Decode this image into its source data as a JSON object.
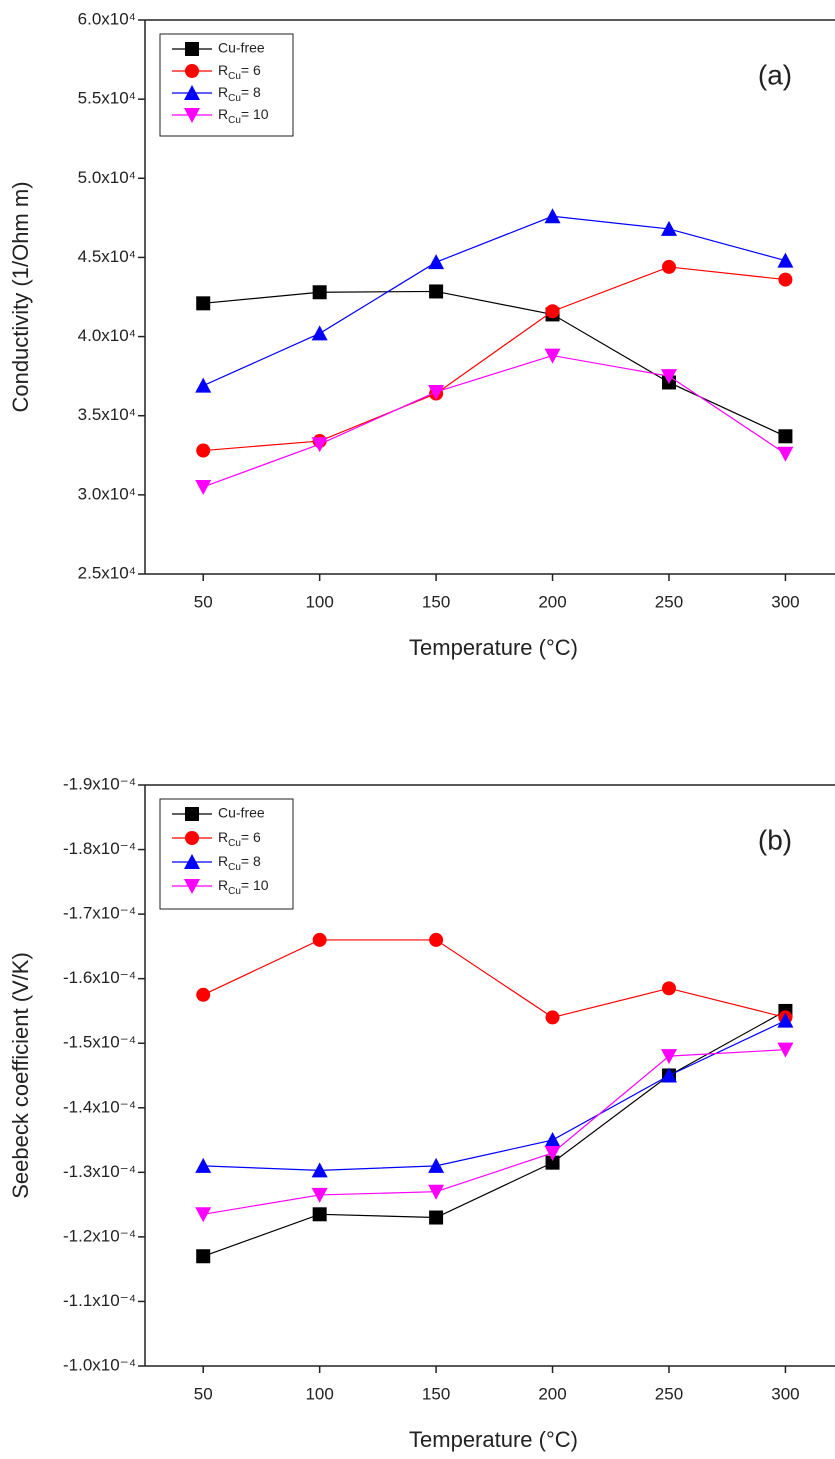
{
  "chart_data": [
    {
      "type": "line",
      "panel_label": "(a)",
      "ylabel": "Conductivity (1/Ohm m)",
      "xlabel": "Temperature (°C)",
      "x": [
        50,
        100,
        150,
        200,
        250,
        300
      ],
      "xlim": [
        25,
        320
      ],
      "xticks": [
        50,
        100,
        150,
        200,
        250,
        300
      ],
      "ylim": [
        25000,
        60000
      ],
      "yticks": [
        {
          "value": 25000,
          "label": "2.5x10⁴"
        },
        {
          "value": 30000,
          "label": "3.0x10⁴"
        },
        {
          "value": 35000,
          "label": "3.5x10⁴"
        },
        {
          "value": 40000,
          "label": "4.0x10⁴"
        },
        {
          "value": 45000,
          "label": "4.5x10⁴"
        },
        {
          "value": 50000,
          "label": "5.0x10⁴"
        },
        {
          "value": 55000,
          "label": "5.5x10⁴"
        },
        {
          "value": 60000,
          "label": "6.0x10⁴"
        }
      ],
      "legend": "upper left",
      "series": [
        {
          "name": "Cu-free",
          "color": "#000000",
          "marker": "square",
          "values": [
            42100,
            42800,
            42850,
            41400,
            37100,
            33700
          ]
        },
        {
          "name": "RCu= 6",
          "color": "#ff0000",
          "marker": "circle",
          "values": [
            32800,
            33400,
            36400,
            41600,
            44400,
            43600
          ]
        },
        {
          "name": "RCu= 8",
          "color": "#0000ff",
          "marker": "triangle-up",
          "values": [
            36900,
            40200,
            44700,
            47600,
            46800,
            44800
          ]
        },
        {
          "name": "RCu= 10",
          "color": "#ff00ff",
          "marker": "triangle-down",
          "values": [
            30500,
            33200,
            36500,
            38800,
            37500,
            32600
          ]
        }
      ]
    },
    {
      "type": "line",
      "panel_label": "(b)",
      "ylabel": "Seebeck coefficient (V/K)",
      "xlabel": "Temperature (°C)",
      "x": [
        50,
        100,
        150,
        200,
        250,
        300
      ],
      "xlim": [
        25,
        320
      ],
      "xticks": [
        50,
        100,
        150,
        200,
        250,
        300
      ],
      "ylim": [
        -0.0001,
        -0.00019
      ],
      "yticks": [
        {
          "value": -0.0001,
          "label": "-1.0x10⁻⁴"
        },
        {
          "value": -0.00011,
          "label": "-1.1x10⁻⁴"
        },
        {
          "value": -0.00012,
          "label": "-1.2x10⁻⁴"
        },
        {
          "value": -0.00013,
          "label": "-1.3x10⁻⁴"
        },
        {
          "value": -0.00014,
          "label": "-1.4x10⁻⁴"
        },
        {
          "value": -0.00015,
          "label": "-1.5x10⁻⁴"
        },
        {
          "value": -0.00016,
          "label": "-1.6x10⁻⁴"
        },
        {
          "value": -0.00017,
          "label": "-1.7x10⁻⁴"
        },
        {
          "value": -0.00018,
          "label": "-1.8x10⁻⁴"
        },
        {
          "value": -0.00019,
          "label": "-1.9x10⁻⁴"
        }
      ],
      "legend": "upper left",
      "series": [
        {
          "name": "Cu-free",
          "color": "#000000",
          "marker": "square",
          "values": [
            -0.000117,
            -0.0001235,
            -0.000123,
            -0.0001315,
            -0.000145,
            -0.000155
          ]
        },
        {
          "name": "RCu= 6",
          "color": "#ff0000",
          "marker": "circle",
          "values": [
            -0.0001575,
            -0.000166,
            -0.000166,
            -0.000154,
            -0.0001585,
            -0.000154
          ]
        },
        {
          "name": "RCu= 8",
          "color": "#0000ff",
          "marker": "triangle-up",
          "values": [
            -0.000131,
            -0.0001303,
            -0.000131,
            -0.000135,
            -0.000145,
            -0.0001535
          ]
        },
        {
          "name": "RCu= 10",
          "color": "#ff00ff",
          "marker": "triangle-down",
          "values": [
            -0.0001235,
            -0.0001265,
            -0.000127,
            -0.000133,
            -0.000148,
            -0.000149
          ]
        }
      ]
    }
  ]
}
